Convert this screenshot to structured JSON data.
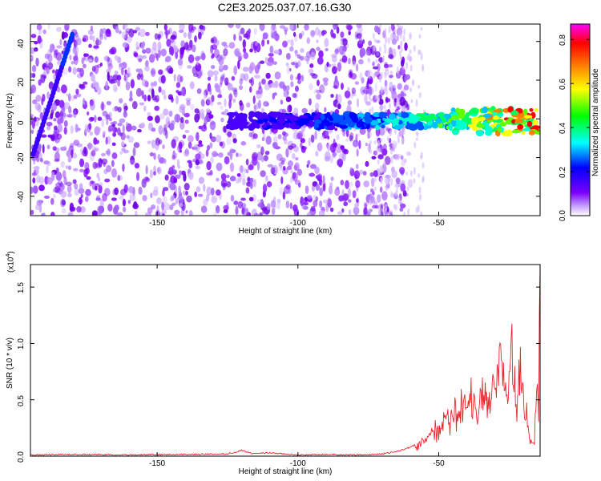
{
  "title": "C2E3.2025.037.07.16.G30",
  "colorbar": {
    "label": "Normalized spectral amplitude",
    "ticks": [
      "0.0",
      "0.2",
      "0.4",
      "0.6",
      "0.8"
    ],
    "tick_values": [
      0.0,
      0.2,
      0.4,
      0.6,
      0.8
    ],
    "range": [
      0,
      0.87
    ],
    "colormap": [
      "#ffffff",
      "#7a00ff",
      "#0000ff",
      "#00ffff",
      "#00ff00",
      "#ffff00",
      "#ff8000",
      "#ff0000",
      "#ff00ff"
    ]
  },
  "chart_data": [
    {
      "type": "heatmap",
      "xlabel": "Height of straight line (km)",
      "ylabel": "Frequency (Hz)",
      "xlim": [
        -195,
        -14
      ],
      "ylim": [
        -50,
        49
      ],
      "x_ticks": [
        -150,
        -100,
        -50
      ],
      "x_tick_labels": [
        "-150",
        "-100",
        "-50"
      ],
      "y_ticks": [
        40,
        20,
        0,
        -20,
        -40
      ],
      "y_tick_labels": [
        "40",
        "20",
        "0",
        "-20",
        "-40"
      ],
      "features": [
        {
          "name": "scattered noise",
          "x_range": [
            -195,
            -60
          ],
          "y_range": [
            -50,
            49
          ],
          "amplitude": 0.12
        },
        {
          "name": "diagonal streak",
          "from": [
            -194,
            -18
          ],
          "to": [
            -180,
            44
          ],
          "amplitude": 0.12
        },
        {
          "name": "signal band",
          "from": [
            -125,
            -1
          ],
          "to": [
            -14,
            0
          ],
          "amplitude_max": 0.87
        }
      ]
    },
    {
      "type": "line",
      "xlabel": "Height of straight line (km)",
      "ylabel": "SNR (10 * v/v)",
      "y_scale_label": "(x10",
      "y_scale_exponent": "4",
      "xlim": [
        -195,
        -14
      ],
      "ylim": [
        0,
        1.7
      ],
      "x_ticks": [
        -150,
        -100,
        -50
      ],
      "x_tick_labels": [
        "-150",
        "-100",
        "-50"
      ],
      "y_ticks": [
        0.0,
        0.5,
        1.0,
        1.5
      ],
      "y_tick_labels": [
        "0.0",
        "0.5",
        "1.0",
        "1.5"
      ],
      "color": "#e8262c",
      "series": [
        {
          "x": [
            -195,
            -180,
            -160,
            -140,
            -125,
            -120,
            -116,
            -110,
            -100,
            -90,
            -80,
            -70,
            -65,
            -60,
            -57,
            -54,
            -52,
            -50,
            -48,
            -45,
            -42,
            -40,
            -38,
            -36,
            -34,
            -32,
            -30,
            -28,
            -27,
            -26,
            -24,
            -22,
            -21,
            -20,
            -18,
            -17,
            -16,
            -15.5,
            -15,
            -14.5,
            -14
          ],
          "y": [
            0.01,
            0.015,
            0.012,
            0.015,
            0.02,
            0.05,
            0.02,
            0.03,
            0.01,
            0.015,
            0.01,
            0.02,
            0.04,
            0.08,
            0.12,
            0.2,
            0.35,
            0.28,
            0.45,
            0.4,
            0.55,
            0.5,
            0.65,
            0.45,
            0.78,
            0.6,
            0.7,
            1.2,
            0.8,
            0.65,
            1.15,
            0.5,
            1.2,
            0.7,
            0.3,
            0.15,
            0.12,
            0.6,
            1.05,
            0.45,
            1.68
          ]
        }
      ]
    }
  ]
}
